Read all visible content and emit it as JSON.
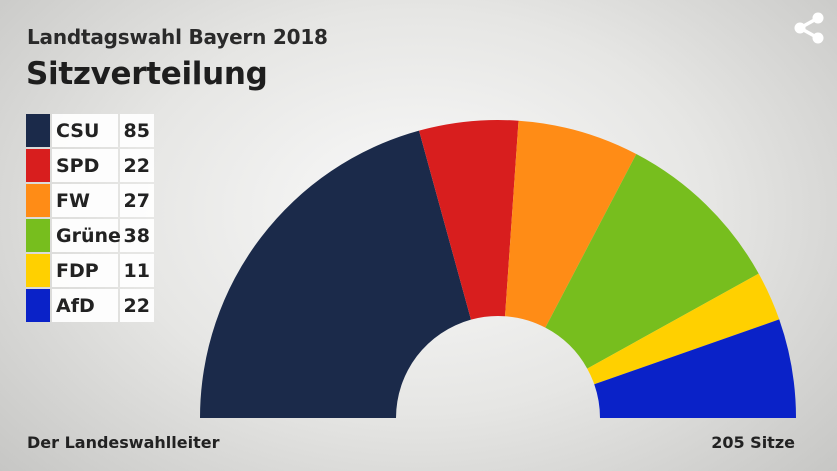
{
  "header": {
    "subtitle": "Landtagswahl Bayern 2018",
    "title": "Sitzverteilung"
  },
  "share_icon": "share-icon",
  "footer": {
    "source": "Der Landeswahlleiter",
    "total": "205 Sitze"
  },
  "chart_data": {
    "type": "pie",
    "variant": "half-donut",
    "title": "Sitzverteilung",
    "total_seats": 205,
    "legend_position": "left",
    "series": [
      {
        "name": "CSU",
        "value": 85,
        "color": "#1b2a4a"
      },
      {
        "name": "SPD",
        "value": 22,
        "color": "#d81e1e"
      },
      {
        "name": "FW",
        "value": 27,
        "color": "#ff8c16"
      },
      {
        "name": "Grüne",
        "value": 38,
        "color": "#77be1e"
      },
      {
        "name": "FDP",
        "value": 11,
        "color": "#ffd000"
      },
      {
        "name": "AfD",
        "value": 22,
        "color": "#0a22c8"
      }
    ]
  }
}
